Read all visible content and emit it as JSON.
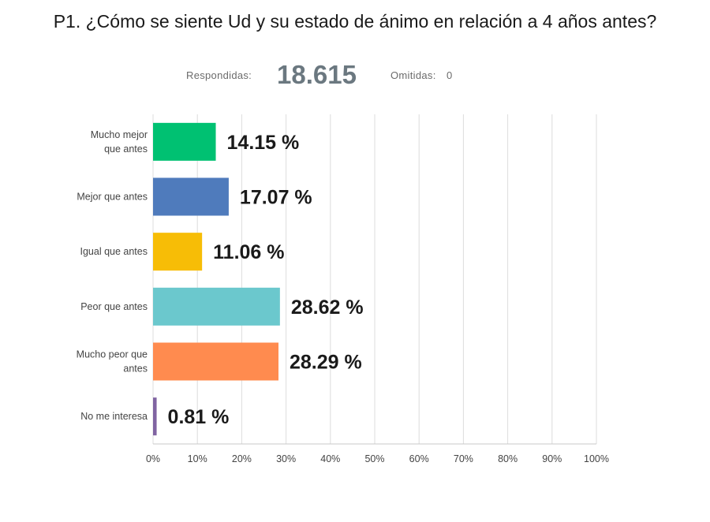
{
  "title": "P1. ¿Cómo se siente Ud y su estado de ánimo en relación a 4 años antes?",
  "summary": {
    "answered_label": "Respondidas:",
    "answered_value": "18.615",
    "skipped_label": "Omitidas:",
    "skipped_value": "0"
  },
  "chart_data": {
    "type": "bar",
    "orientation": "horizontal",
    "categories": [
      [
        "Mucho mejor",
        "que antes"
      ],
      [
        "Mejor que antes"
      ],
      [
        "Igual que antes"
      ],
      [
        "Peor que antes"
      ],
      [
        "Mucho peor que",
        "antes"
      ],
      [
        "No me interesa"
      ]
    ],
    "values": [
      14.15,
      17.07,
      11.06,
      28.62,
      28.29,
      0.81
    ],
    "value_labels": [
      "14.15 %",
      "17.07 %",
      "11.06 %",
      "28.62 %",
      "28.29 %",
      "0.81 %"
    ],
    "colors": [
      "#00c172",
      "#4f7bbc",
      "#f7bd06",
      "#6bc8cd",
      "#ff8b4f",
      "#8064a2"
    ],
    "xlim": [
      0,
      100
    ],
    "xticks": [
      "0%",
      "10%",
      "20%",
      "30%",
      "40%",
      "50%",
      "60%",
      "70%",
      "80%",
      "90%",
      "100%"
    ],
    "grid": true
  }
}
